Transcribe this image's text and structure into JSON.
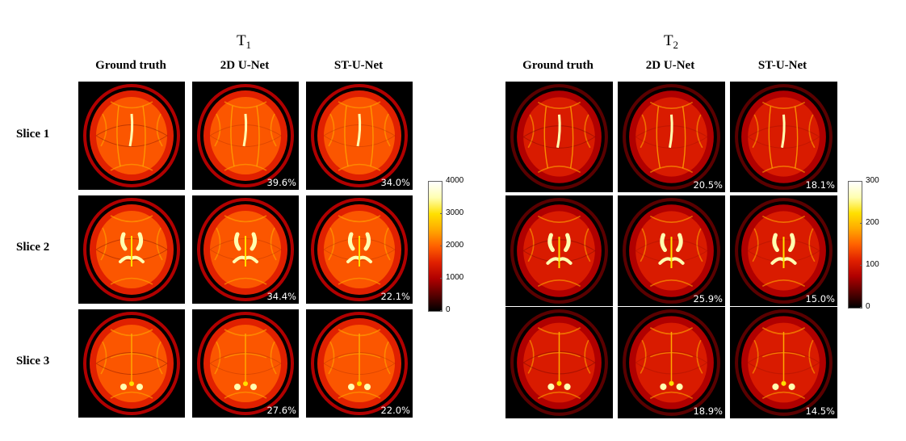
{
  "groups": [
    {
      "id": "t1",
      "title_base": "T",
      "title_sub": "1",
      "columns": [
        "Ground truth",
        "2D U-Net",
        "ST-U-Net"
      ],
      "rows": [
        {
          "label": "Slice 1",
          "errors": [
            "",
            "39.6%",
            "34.0%"
          ]
        },
        {
          "label": "Slice 2",
          "errors": [
            "",
            "34.4%",
            "22.1%"
          ]
        },
        {
          "label": "Slice 3",
          "errors": [
            "",
            "27.6%",
            "22.0%"
          ]
        }
      ],
      "colorbar_ticks": [
        "4000",
        "3000",
        "2000",
        "1000",
        "0"
      ]
    },
    {
      "id": "t2",
      "title_base": "T",
      "title_sub": "2",
      "columns": [
        "Ground truth",
        "2D U-Net",
        "ST-U-Net"
      ],
      "rows": [
        {
          "label": "Slice 1",
          "errors": [
            "",
            "20.5%",
            "18.1%"
          ]
        },
        {
          "label": "Slice 2",
          "errors": [
            "",
            "25.9%",
            "15.0%"
          ]
        },
        {
          "label": "Slice 3",
          "errors": [
            "",
            "18.9%",
            "14.5%"
          ]
        }
      ],
      "colorbar_ticks": [
        "300",
        "200",
        "100",
        "0"
      ]
    }
  ],
  "colormap": [
    "#000000",
    "#5a0000",
    "#b00000",
    "#e02000",
    "#ff6000",
    "#ffa800",
    "#ffe000",
    "#ffffb0",
    "#ffffff"
  ]
}
